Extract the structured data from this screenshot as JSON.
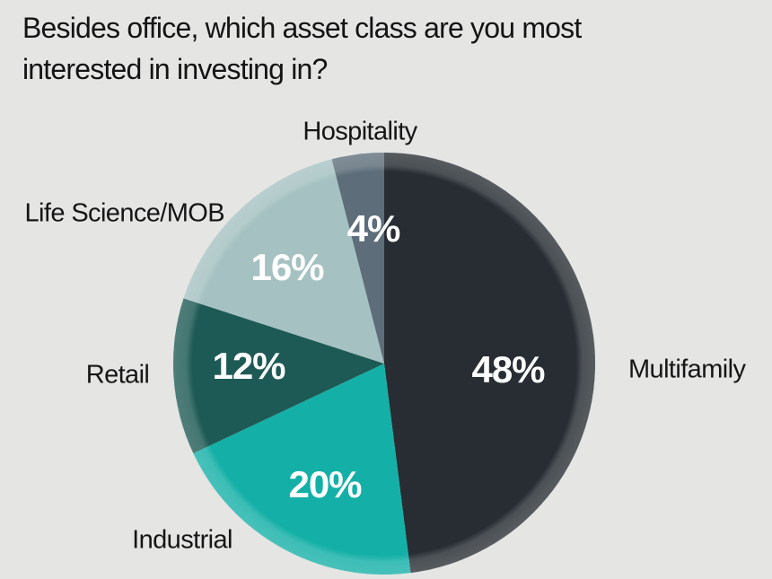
{
  "chart_data": {
    "type": "pie",
    "title": "Besides office, which asset class are you most interested in investing in?",
    "direction": "clockwise",
    "start_angle_deg": 0,
    "background_color": "#e5e5e3",
    "title_color": "#141414",
    "label_color": "#161616",
    "value_label_color": "#ffffff",
    "legend_position": "around-pie",
    "slices": [
      {
        "label": "Multifamily",
        "value": 48,
        "display": "48%",
        "color": "#272d33"
      },
      {
        "label": "Industrial",
        "value": 20,
        "display": "20%",
        "color": "#14b0a7"
      },
      {
        "label": "Retail",
        "value": 12,
        "display": "12%",
        "color": "#1e5a55"
      },
      {
        "label": "Life Science/MOB",
        "value": 16,
        "display": "16%",
        "color": "#a5c1c1"
      },
      {
        "label": "Hospitality",
        "value": 4,
        "display": "4%",
        "color": "#5d6d79"
      }
    ]
  }
}
